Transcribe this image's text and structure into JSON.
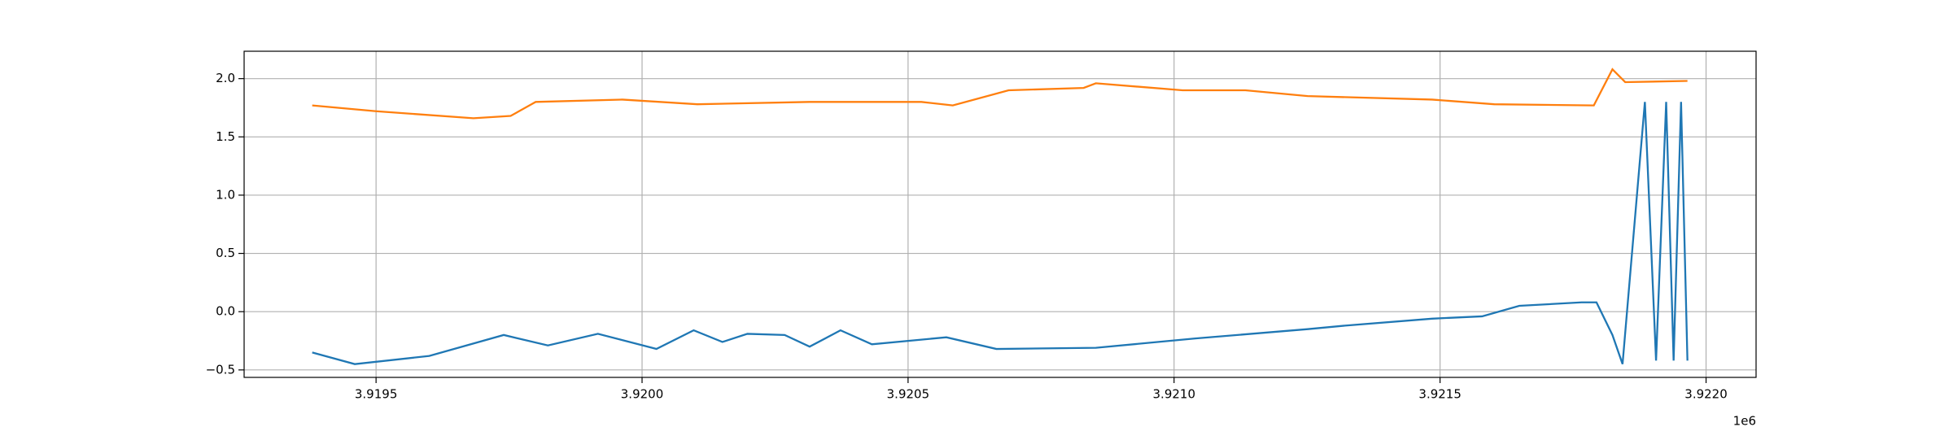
{
  "chart_data": {
    "type": "line",
    "xlim": [
      3919252,
      3922094
    ],
    "ylim": [
      -0.564,
      2.235
    ],
    "xticks": [
      {
        "value": 3919500,
        "label": "3.9195"
      },
      {
        "value": 3920000,
        "label": "3.9200"
      },
      {
        "value": 3920500,
        "label": "3.9205"
      },
      {
        "value": 3921000,
        "label": "3.9210"
      },
      {
        "value": 3921500,
        "label": "3.9215"
      },
      {
        "value": 3922000,
        "label": "3.9220"
      }
    ],
    "yticks": [
      {
        "value": -0.5,
        "label": "−0.5"
      },
      {
        "value": 0,
        "label": "0.0"
      },
      0.5,
      {
        "value": 1,
        "label": "1.0"
      },
      1.5,
      {
        "value": 2,
        "label": "2.0"
      }
    ],
    "x_offset_label": "1e6",
    "grid": true,
    "series": [
      {
        "color": "#1f77b4",
        "x": [
          3919380,
          3919460,
          3919600,
          3919740,
          3919823,
          3919917,
          3920027,
          3920097,
          3920151,
          3920198,
          3920268,
          3920315,
          3920373,
          3920432,
          3920572,
          3920666,
          3920853,
          3921040,
          3921251,
          3921321,
          3921485,
          3921579,
          3921649,
          3921766,
          3921794,
          3921824,
          3921843,
          3921885,
          3921906,
          3921925,
          3921939,
          3921953,
          3921965
        ],
        "values": [
          -0.35,
          -0.45,
          -0.38,
          -0.2,
          -0.29,
          -0.19,
          -0.32,
          -0.16,
          -0.26,
          -0.19,
          -0.2,
          -0.3,
          -0.16,
          -0.28,
          -0.22,
          -0.32,
          -0.31,
          -0.23,
          -0.15,
          -0.12,
          -0.06,
          -0.04,
          0.05,
          0.08,
          0.08,
          -0.2,
          -0.45,
          1.8,
          -0.42,
          1.8,
          -0.42,
          1.8,
          -0.42
        ]
      },
      {
        "color": "#ff7f0e",
        "x": [
          3919380,
          3919500,
          3919683,
          3919753,
          3919800,
          3919963,
          3920104,
          3920315,
          3920525,
          3920584,
          3920689,
          3920830,
          3920853,
          3921016,
          3921134,
          3921251,
          3921485,
          3921602,
          3921789,
          3921824,
          3921848,
          3921965
        ],
        "values": [
          1.77,
          1.72,
          1.66,
          1.68,
          1.8,
          1.82,
          1.78,
          1.8,
          1.8,
          1.77,
          1.9,
          1.92,
          1.96,
          1.9,
          1.9,
          1.85,
          1.82,
          1.78,
          1.77,
          2.08,
          1.97,
          1.98
        ]
      }
    ]
  }
}
